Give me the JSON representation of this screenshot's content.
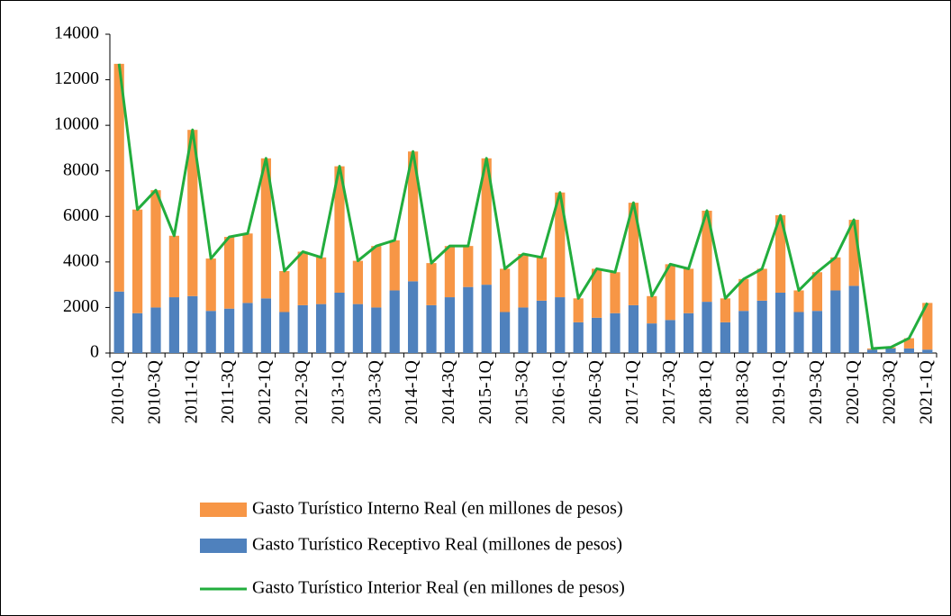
{
  "chart_data": {
    "type": "bar",
    "stacked": true,
    "categories": [
      "2010-1Q",
      null,
      "2010-3Q",
      null,
      "2011-1Q",
      null,
      "2011-3Q",
      null,
      "2012-1Q",
      null,
      "2012-3Q",
      null,
      "2013-1Q",
      null,
      "2013-3Q",
      null,
      "2014-1Q",
      null,
      "2014-3Q",
      null,
      "2015-1Q",
      null,
      "2015-3Q",
      null,
      "2016-1Q",
      null,
      "2016-3Q",
      null,
      "2017-1Q",
      null,
      "2017-3Q",
      null,
      "2018-1Q",
      null,
      "2018-3Q",
      null,
      "2019-1Q",
      null,
      "2019-3Q",
      null,
      "2020-1Q",
      null,
      "2020-3Q",
      null,
      "2021-1Q"
    ],
    "series": [
      {
        "name": "Gasto Turístico Interno Real (en millones de pesos)",
        "color": "#f79646",
        "type": "bar",
        "values": [
          10000,
          4550,
          5150,
          2700,
          7300,
          2300,
          3150,
          3050,
          6150,
          1800,
          2350,
          2050,
          5550,
          1900,
          2700,
          2200,
          5700,
          1850,
          2250,
          1800,
          5550,
          1900,
          2350,
          1900,
          4600,
          1050,
          2150,
          1800,
          4500,
          1200,
          2450,
          1950,
          4000,
          1050,
          1400,
          1400,
          3400,
          950,
          1700,
          1450,
          2900,
          50,
          50,
          450,
          2050
        ]
      },
      {
        "name": "Gasto Turístico Receptivo Real (millones de pesos)",
        "color": "#4f81bd",
        "type": "bar",
        "values": [
          2700,
          1750,
          2000,
          2450,
          2500,
          1850,
          1950,
          2200,
          2400,
          1800,
          2100,
          2150,
          2650,
          2150,
          2000,
          2750,
          3150,
          2100,
          2450,
          2900,
          3000,
          1800,
          2000,
          2300,
          2450,
          1350,
          1550,
          1750,
          2100,
          1300,
          1450,
          1750,
          2250,
          1350,
          1850,
          2300,
          2650,
          1800,
          1850,
          2750,
          2950,
          150,
          200,
          200,
          150
        ]
      },
      {
        "name": "Gasto Turístico Interior Real (en millones de pesos)",
        "color": "#22ad3d",
        "type": "line",
        "values": [
          12700,
          6300,
          7150,
          5150,
          9800,
          4150,
          5100,
          5250,
          8550,
          3600,
          4450,
          4200,
          8200,
          4050,
          4700,
          4950,
          8850,
          3950,
          4700,
          4700,
          8550,
          3700,
          4350,
          4200,
          7050,
          2400,
          3700,
          3550,
          6600,
          2500,
          3900,
          3700,
          6250,
          2400,
          3250,
          3700,
          6050,
          2750,
          3550,
          4200,
          5850,
          200,
          250,
          650,
          2200
        ]
      }
    ],
    "ylim": [
      0,
      14000
    ],
    "yticks": [
      0,
      2000,
      4000,
      6000,
      8000,
      10000,
      12000,
      14000
    ],
    "legend": "bottom"
  }
}
